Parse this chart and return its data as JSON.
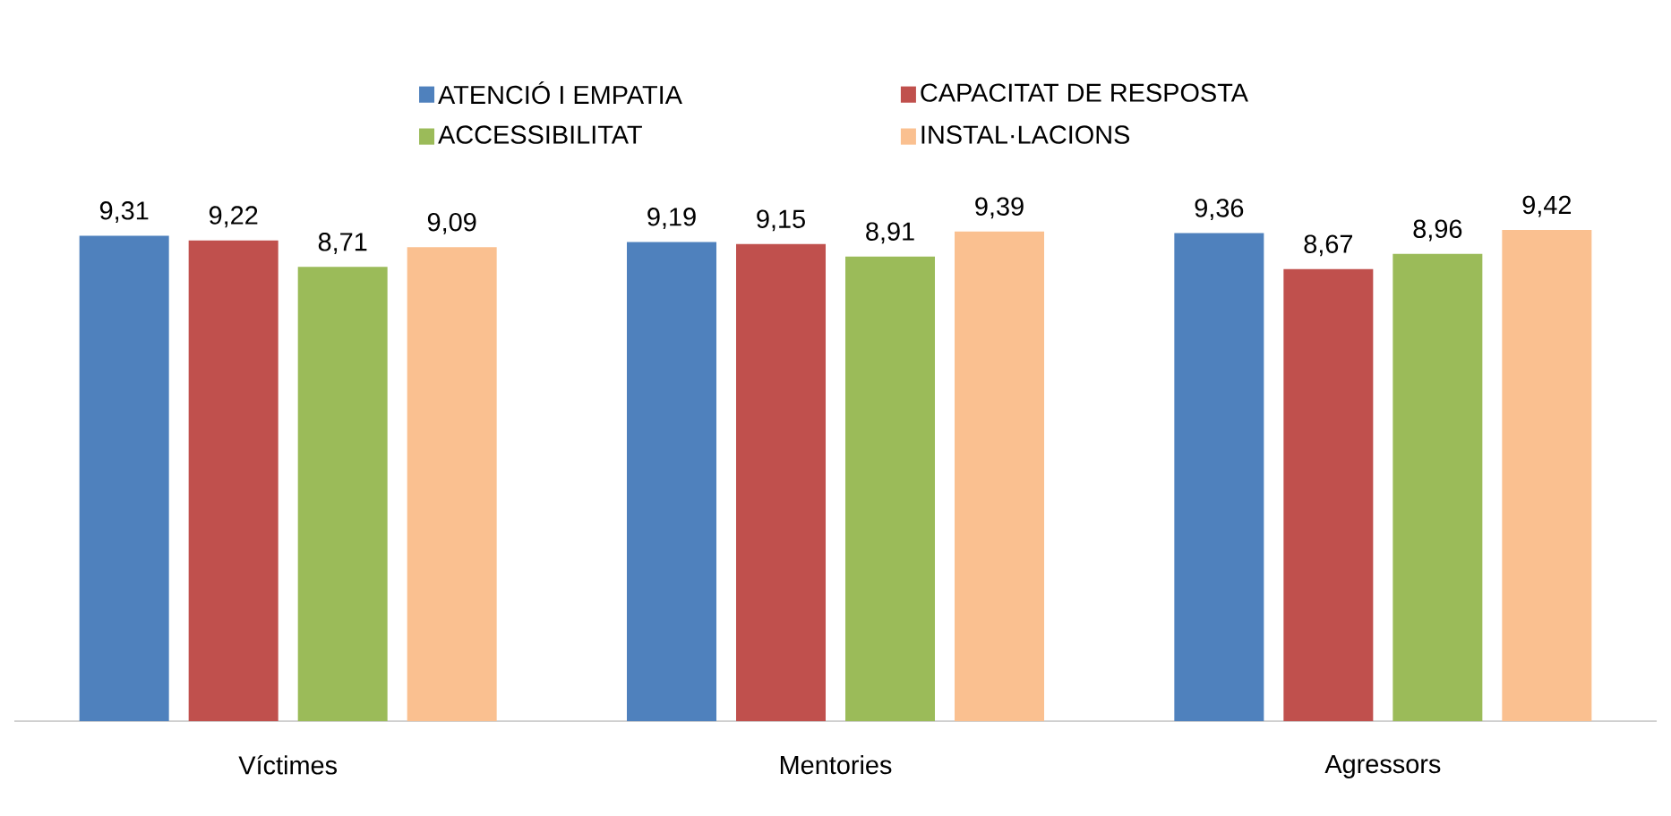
{
  "chart_data": {
    "type": "bar",
    "categories": [
      "Víctimes",
      "Mentories",
      "Agressors"
    ],
    "series": [
      {
        "name": "ATENCIÓ I EMPATIA",
        "color": "#4f81bd",
        "values": [
          9.31,
          9.19,
          9.36
        ],
        "value_labels": [
          "9,31",
          "9,19",
          "9,36"
        ]
      },
      {
        "name": "CAPACITAT DE RESPOSTA",
        "color": "#c0504d",
        "values": [
          9.22,
          9.15,
          8.67
        ],
        "value_labels": [
          "9,22",
          "9,15",
          "8,67"
        ]
      },
      {
        "name": "ACCESSIBILITAT",
        "color": "#9bbb59",
        "values": [
          8.71,
          8.91,
          8.96
        ],
        "value_labels": [
          "8,71",
          "8,91",
          "8,96"
        ]
      },
      {
        "name": "INSTAL·LACIONS",
        "color": "#fac090",
        "values": [
          9.09,
          9.39,
          9.42
        ],
        "value_labels": [
          "9,09",
          "9,39",
          "9,42"
        ]
      }
    ],
    "tick_labels": "x",
    "legend": "top"
  }
}
